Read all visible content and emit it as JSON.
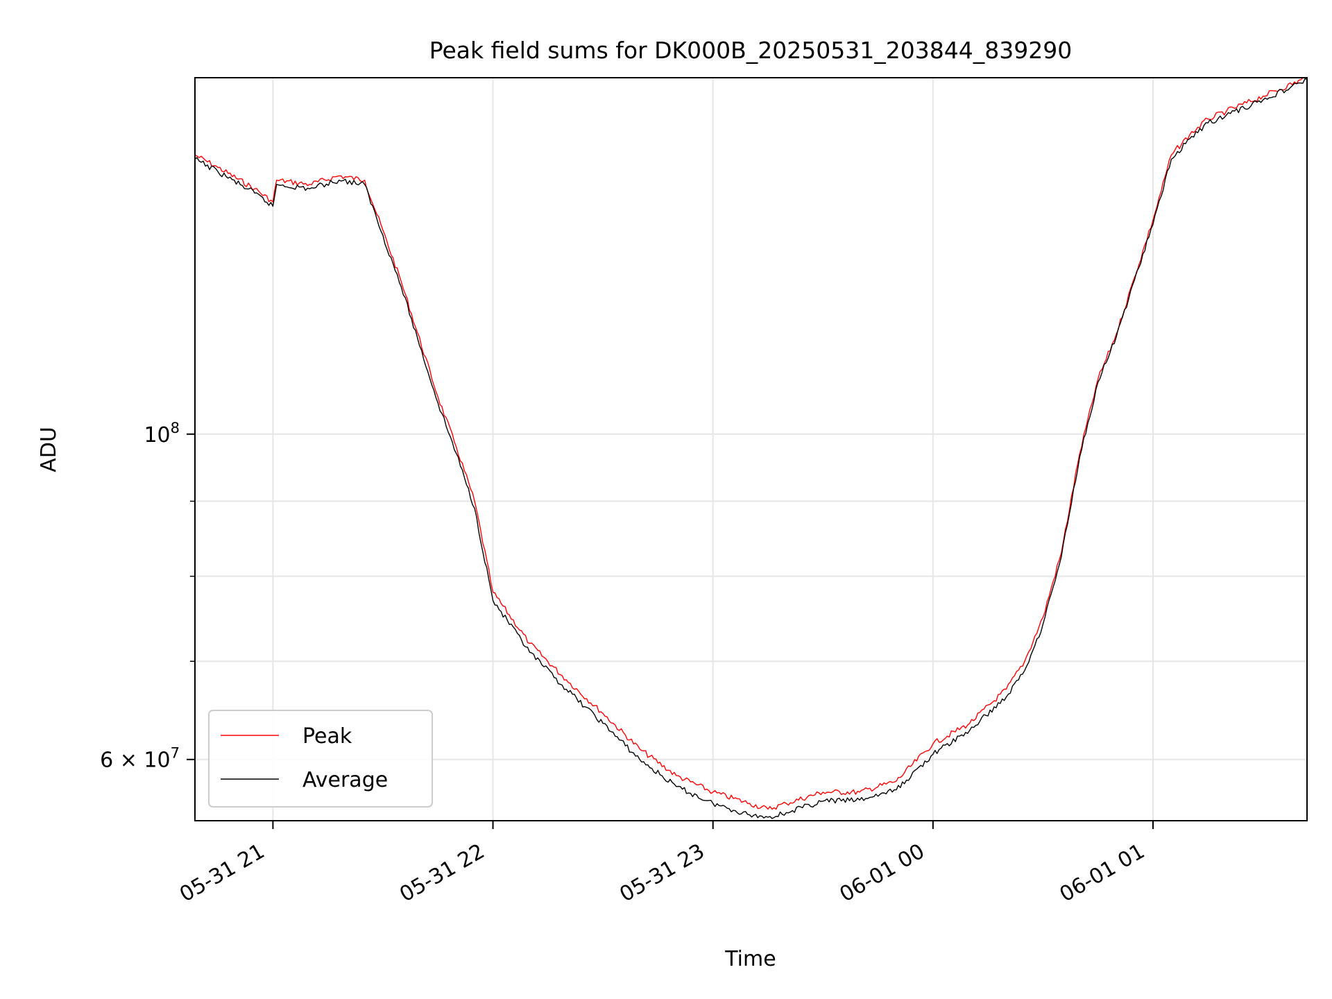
{
  "chart_data": {
    "type": "line",
    "title": "Peak field sums for DK000B_20250531_203844_839290",
    "xlabel": "Time",
    "ylabel": "ADU",
    "xlim": [
      "2025-05-31 20:38:44",
      "2025-06-01 01:42:00"
    ],
    "ylim": [
      54500000,
      175000000
    ],
    "yscale": "log",
    "grid": true,
    "legend_position": "lower-left",
    "x_ticks": [
      {
        "value": "2025-05-31 21:00",
        "label": "05-31 21"
      },
      {
        "value": "2025-05-31 22:00",
        "label": "05-31 22"
      },
      {
        "value": "2025-05-31 23:00",
        "label": "05-31 23"
      },
      {
        "value": "2025-06-01 00:00",
        "label": "06-01 00"
      },
      {
        "value": "2025-06-01 01:00",
        "label": "06-01 01"
      }
    ],
    "y_major_ticks": [
      {
        "value": 100000000,
        "base": "10",
        "exp": "8"
      },
      {
        "value": 60000000,
        "base": "6 × 10",
        "exp": "7"
      }
    ],
    "y_minor_ticks": [
      70000000,
      80000000,
      90000000
    ],
    "x": [
      "2025-05-31 20:38:44",
      "2025-05-31 20:45",
      "2025-05-31 20:55",
      "2025-05-31 21:00",
      "2025-05-31 21:01",
      "2025-05-31 21:10",
      "2025-05-31 21:18",
      "2025-05-31 21:25",
      "2025-05-31 21:35",
      "2025-05-31 21:45",
      "2025-05-31 21:50",
      "2025-05-31 21:55",
      "2025-05-31 22:00",
      "2025-05-31 22:10",
      "2025-05-31 22:20",
      "2025-05-31 22:30",
      "2025-05-31 22:40",
      "2025-05-31 22:50",
      "2025-05-31 23:00",
      "2025-05-31 23:10",
      "2025-05-31 23:15",
      "2025-05-31 23:20",
      "2025-05-31 23:30",
      "2025-05-31 23:40",
      "2025-05-31 23:50",
      "2025-06-01 00:00",
      "2025-06-01 00:10",
      "2025-06-01 00:20",
      "2025-06-01 00:25",
      "2025-06-01 00:30",
      "2025-06-01 00:35",
      "2025-06-01 00:40",
      "2025-06-01 00:45",
      "2025-06-01 00:50",
      "2025-06-01 00:55",
      "2025-06-01 01:00",
      "2025-06-01 01:05",
      "2025-06-01 01:10",
      "2025-06-01 01:15",
      "2025-06-01 01:20",
      "2025-06-01 01:30",
      "2025-06-01 01:42"
    ],
    "series": [
      {
        "name": "Peak",
        "color": "#ff0000",
        "values": [
          155000000,
          152000000,
          147000000,
          144000000,
          149000000,
          148000000,
          150000000,
          149000000,
          127000000,
          106000000,
          98000000,
          90000000,
          78000000,
          72000000,
          68000000,
          64500000,
          61000000,
          58500000,
          57000000,
          56000000,
          55500000,
          56000000,
          57000000,
          57000000,
          58000000,
          61500000,
          63500000,
          67000000,
          70000000,
          75000000,
          83000000,
          97000000,
          109000000,
          117000000,
          128000000,
          140000000,
          155000000,
          160000000,
          164000000,
          166000000,
          170000000,
          175000000
        ]
      },
      {
        "name": "Average",
        "color": "#000000",
        "values": [
          154000000,
          151000000,
          146000000,
          143000000,
          148000000,
          147000000,
          149000000,
          148000000,
          126000000,
          105000000,
          97000000,
          89000000,
          77000000,
          71000000,
          67000000,
          63500000,
          60000000,
          57500000,
          56000000,
          55000000,
          54800000,
          55200000,
          56200000,
          56300000,
          57200000,
          60500000,
          62800000,
          66200000,
          69000000,
          74200000,
          82500000,
          96500000,
          108500000,
          116500000,
          127500000,
          139000000,
          154000000,
          159000000,
          163000000,
          165000000,
          169000000,
          174500000
        ]
      }
    ]
  }
}
